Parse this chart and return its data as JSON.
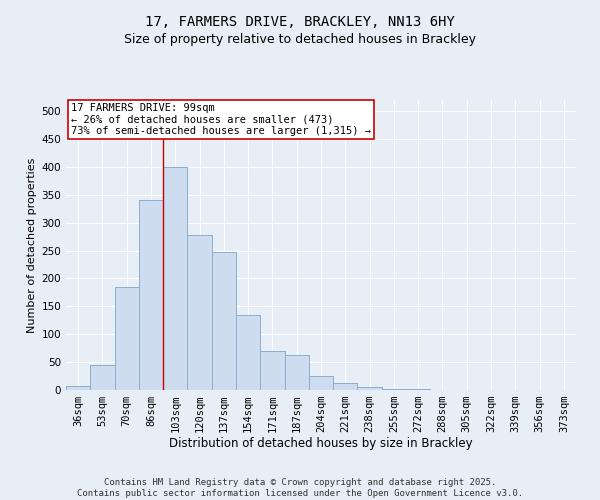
{
  "title1": "17, FARMERS DRIVE, BRACKLEY, NN13 6HY",
  "title2": "Size of property relative to detached houses in Brackley",
  "xlabel": "Distribution of detached houses by size in Brackley",
  "ylabel": "Number of detached properties",
  "categories": [
    "36sqm",
    "53sqm",
    "70sqm",
    "86sqm",
    "103sqm",
    "120sqm",
    "137sqm",
    "154sqm",
    "171sqm",
    "187sqm",
    "204sqm",
    "221sqm",
    "238sqm",
    "255sqm",
    "272sqm",
    "288sqm",
    "305sqm",
    "322sqm",
    "339sqm",
    "356sqm",
    "373sqm"
  ],
  "values": [
    8,
    45,
    185,
    340,
    400,
    278,
    248,
    135,
    70,
    63,
    25,
    12,
    5,
    2,
    1,
    0.5,
    0.3,
    0.1,
    0.0,
    0.0,
    0.0
  ],
  "bar_color": "#cddcee",
  "bar_edge_color": "#89aece",
  "vline_color": "#cc0000",
  "vline_x_index": 3.5,
  "annotation_text": "17 FARMERS DRIVE: 99sqm\n← 26% of detached houses are smaller (473)\n73% of semi-detached houses are larger (1,315) →",
  "annotation_box_facecolor": "#ffffff",
  "annotation_box_edgecolor": "#cc0000",
  "ylim": [
    0,
    520
  ],
  "yticks": [
    0,
    50,
    100,
    150,
    200,
    250,
    300,
    350,
    400,
    450,
    500
  ],
  "bg_color": "#e8eef5",
  "grid_color": "#ffffff",
  "footer": "Contains HM Land Registry data © Crown copyright and database right 2025.\nContains public sector information licensed under the Open Government Licence v3.0.",
  "title1_fontsize": 10,
  "title2_fontsize": 9,
  "xlabel_fontsize": 8.5,
  "ylabel_fontsize": 8,
  "tick_fontsize": 7.5,
  "annotation_fontsize": 7.5,
  "footer_fontsize": 6.5
}
